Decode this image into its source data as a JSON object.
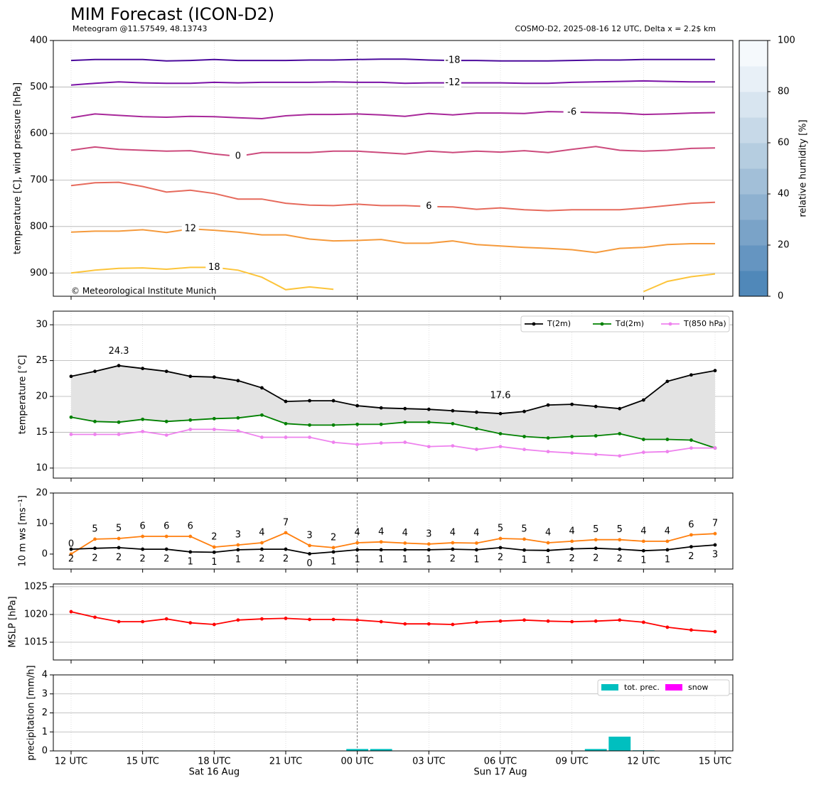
{
  "chart_data": [
    {
      "type": "contour",
      "title": "MIM Forecast (ICON-D2)",
      "subtitle": "Meteogram @11.57549, 48.13743",
      "note": "COSMO-D2, 2025-08-16 12 UTC, Delta x = 2.2$ km",
      "copyright": "© Meteorological Institute Munich",
      "ylabel": "temperature [C], wind pressure [hPa]",
      "ylim": [
        950,
        400
      ],
      "yticks": [
        400,
        500,
        600,
        700,
        800,
        900
      ],
      "grid": true,
      "series": [
        {
          "name": "-18",
          "color": "#4b0a9c",
          "values": [
            443,
            441,
            441,
            441,
            444,
            443,
            441,
            443,
            443,
            443,
            442,
            442,
            441,
            440,
            440,
            442,
            443,
            443,
            444,
            444,
            444,
            443,
            442,
            442,
            441,
            441,
            441,
            441
          ]
        },
        {
          "name": "-12",
          "color": "#7a12a6",
          "values": [
            496,
            492,
            489,
            491,
            492,
            492,
            490,
            491,
            490,
            490,
            490,
            489,
            490,
            490,
            492,
            491,
            491,
            491,
            491,
            492,
            492,
            490,
            489,
            488,
            487,
            488,
            489,
            489
          ]
        },
        {
          "name": "-6",
          "color": "#a8289a",
          "values": [
            566,
            558,
            561,
            564,
            565,
            563,
            564,
            566,
            568,
            562,
            559,
            559,
            558,
            560,
            563,
            557,
            560,
            556,
            556,
            557,
            553,
            554,
            555,
            556,
            559,
            558,
            556,
            555
          ]
        },
        {
          "name": "0",
          "color": "#cc4a7c",
          "values": [
            636,
            629,
            634,
            636,
            638,
            637,
            644,
            649,
            641,
            641,
            641,
            638,
            638,
            641,
            644,
            638,
            641,
            638,
            640,
            637,
            641,
            634,
            628,
            636,
            638,
            636,
            632,
            631
          ]
        },
        {
          "name": "6",
          "color": "#e66a5c",
          "values": [
            712,
            706,
            705,
            714,
            726,
            722,
            729,
            741,
            741,
            750,
            754,
            755,
            752,
            755,
            755,
            757,
            758,
            763,
            760,
            764,
            766,
            764,
            764,
            764,
            760,
            755,
            750,
            748
          ]
        },
        {
          "name": "12",
          "color": "#f59a3c",
          "values": [
            812,
            810,
            810,
            807,
            813,
            805,
            808,
            812,
            818,
            818,
            827,
            831,
            830,
            828,
            836,
            836,
            831,
            839,
            842,
            845,
            847,
            850,
            856,
            847,
            845,
            839,
            837,
            837
          ]
        },
        {
          "name": "18",
          "color": "#fcc43a",
          "values": [
            900,
            894,
            890,
            889,
            892,
            888,
            888,
            894,
            909,
            936,
            930,
            935,
            null,
            null,
            null,
            null,
            null,
            null,
            null,
            null,
            null,
            null,
            null,
            null,
            940,
            918,
            908,
            902
          ]
        }
      ],
      "colorbar": {
        "label": "relative humidity [%]",
        "lim": [
          0,
          100
        ],
        "ticks": [
          0,
          20,
          40,
          60,
          80,
          100
        ],
        "colors": [
          "#5088b9",
          "#6595c1",
          "#7aa3c8",
          "#8eb1d0",
          "#a2bfd8",
          "#b5cde0",
          "#c7d9e8",
          "#d8e5f0",
          "#e8f0f7",
          "#f5f9fc"
        ]
      }
    },
    {
      "type": "line",
      "ylabel": "temperature [°C]",
      "ylim": [
        8.6,
        31.9
      ],
      "yticks": [
        10,
        15,
        20,
        25,
        30
      ],
      "grid": true,
      "legend": "upper right",
      "fill_between": {
        "series": [
          0,
          1
        ],
        "color": "#e3e3e3"
      },
      "series": [
        {
          "name": "T(2m)",
          "color": "#000000",
          "values": [
            22.8,
            23.5,
            24.3,
            23.9,
            23.5,
            22.8,
            22.7,
            22.2,
            21.2,
            19.3,
            19.4,
            19.4,
            18.7,
            18.4,
            18.3,
            18.2,
            18.0,
            17.8,
            17.6,
            17.9,
            18.8,
            18.9,
            18.6,
            18.3,
            19.5,
            22.1,
            23.0,
            23.6
          ],
          "value_labels": [
            null,
            null,
            "24.3",
            null,
            null,
            null,
            null,
            null,
            null,
            null,
            null,
            null,
            null,
            null,
            null,
            null,
            null,
            null,
            "17.6",
            null,
            null,
            null,
            null,
            null,
            null,
            null,
            null,
            null
          ]
        },
        {
          "name": "Td(2m)",
          "color": "#008000",
          "values": [
            17.1,
            16.5,
            16.4,
            16.8,
            16.5,
            16.7,
            16.9,
            17.0,
            17.4,
            16.2,
            16.0,
            16.0,
            16.1,
            16.1,
            16.4,
            16.4,
            16.2,
            15.5,
            14.8,
            14.4,
            14.2,
            14.4,
            14.5,
            14.8,
            14.0,
            14.0,
            13.9,
            12.8
          ]
        },
        {
          "name": "T(850 hPa)",
          "color": "#ee82ee",
          "values": [
            14.7,
            14.7,
            14.7,
            15.1,
            14.6,
            15.4,
            15.4,
            15.2,
            14.3,
            14.3,
            14.3,
            13.6,
            13.3,
            13.5,
            13.6,
            13.0,
            13.1,
            12.6,
            13.0,
            12.6,
            12.3,
            12.1,
            11.9,
            11.7,
            12.2,
            12.3,
            12.8,
            12.8
          ]
        }
      ]
    },
    {
      "type": "line",
      "ylabel": "10 m ws [ms⁻¹]",
      "ylim": [
        -4.9,
        20
      ],
      "yticks": [
        0,
        10,
        20
      ],
      "grid": false,
      "series": [
        {
          "color": "#ff7f0e",
          "values": [
            0,
            4.9,
            5.1,
            5.8,
            5.8,
            5.8,
            2.3,
            3.0,
            3.7,
            7,
            2.8,
            2.1,
            3.7,
            4.0,
            3.6,
            3.3,
            3.7,
            3.6,
            5.1,
            4.9,
            3.7,
            4.2,
            4.7,
            4.7,
            4.2,
            4.2,
            6.3,
            6.7
          ],
          "value_labels": [
            "0",
            "5",
            "5",
            "6",
            "6",
            "6",
            "2",
            "3",
            "4",
            "7",
            "3",
            "2",
            "4",
            "4",
            "4",
            "3",
            "4",
            "4",
            "5",
            "5",
            "4",
            "4",
            "5",
            "5",
            "4",
            "4",
            "6",
            "7"
          ]
        },
        {
          "color": "#000000",
          "values": [
            1.6,
            1.9,
            2.1,
            1.6,
            1.6,
            0.7,
            0.6,
            1.4,
            1.6,
            1.6,
            0.1,
            0.7,
            1.4,
            1.4,
            1.4,
            1.4,
            1.6,
            1.4,
            2.1,
            1.3,
            1.2,
            1.7,
            1.9,
            1.6,
            1.1,
            1.4,
            2.4,
            3
          ],
          "value_labels": [
            "2",
            "2",
            "2",
            "2",
            "2",
            "1",
            "1",
            "1",
            "2",
            "2",
            "0",
            "1",
            "1",
            "1",
            "1",
            "1",
            "2",
            "1",
            "2",
            "1",
            "1",
            "2",
            "2",
            "2",
            "1",
            "1",
            "2",
            "3"
          ]
        }
      ]
    },
    {
      "type": "line",
      "ylabel": "MSLP [hPa]",
      "ylim": [
        1011.8,
        1025.5
      ],
      "yticks": [
        1015,
        1020,
        1025
      ],
      "grid": true,
      "series": [
        {
          "color": "#ff0000",
          "values": [
            1020.5,
            1019.5,
            1018.7,
            1018.7,
            1019.2,
            1018.5,
            1018.2,
            1019.0,
            1019.2,
            1019.3,
            1019.1,
            1019.1,
            1019.0,
            1018.7,
            1018.3,
            1018.3,
            1018.2,
            1018.6,
            1018.8,
            1019.0,
            1018.8,
            1018.7,
            1018.8,
            1019.0,
            1018.6,
            1017.7,
            1017.2,
            1016.9
          ]
        }
      ]
    },
    {
      "type": "bar",
      "ylabel": "precipitation [mm/h]",
      "ylim": [
        0,
        4
      ],
      "yticks": [
        0,
        1,
        2,
        3,
        4
      ],
      "grid": true,
      "legend": "upper right",
      "categories": [
        "12 UTC",
        null,
        null,
        "15 UTC",
        null,
        null,
        "18 UTC",
        null,
        null,
        "21 UTC",
        null,
        null,
        "00 UTC",
        null,
        null,
        "03 UTC",
        null,
        null,
        "06 UTC",
        null,
        null,
        "09 UTC",
        null,
        null,
        "12 UTC",
        null,
        null,
        "15 UTC"
      ],
      "date_labels": [
        null,
        null,
        null,
        null,
        null,
        null,
        "Sat 16 Aug",
        null,
        null,
        null,
        null,
        null,
        null,
        null,
        null,
        null,
        null,
        null,
        "Sun 17 Aug",
        null,
        null,
        null,
        null,
        null,
        null,
        null,
        null,
        null
      ],
      "series": [
        {
          "name": "tot. prec.",
          "color": "#00bfbf",
          "values": [
            0,
            0,
            0,
            0,
            0.02,
            0.02,
            0,
            0,
            0,
            0,
            0,
            0,
            0.1,
            0.1,
            0,
            0,
            0,
            0,
            0,
            0,
            0,
            0.02,
            0.1,
            0.75,
            0.03,
            0,
            0,
            0
          ]
        },
        {
          "name": "snow",
          "color": "#ff00ff",
          "values": [
            0,
            0,
            0,
            0,
            0,
            0,
            0,
            0,
            0,
            0,
            0,
            0,
            0,
            0,
            0,
            0,
            0,
            0,
            0,
            0,
            0,
            0,
            0,
            0,
            0,
            0,
            0,
            0
          ]
        }
      ]
    }
  ]
}
